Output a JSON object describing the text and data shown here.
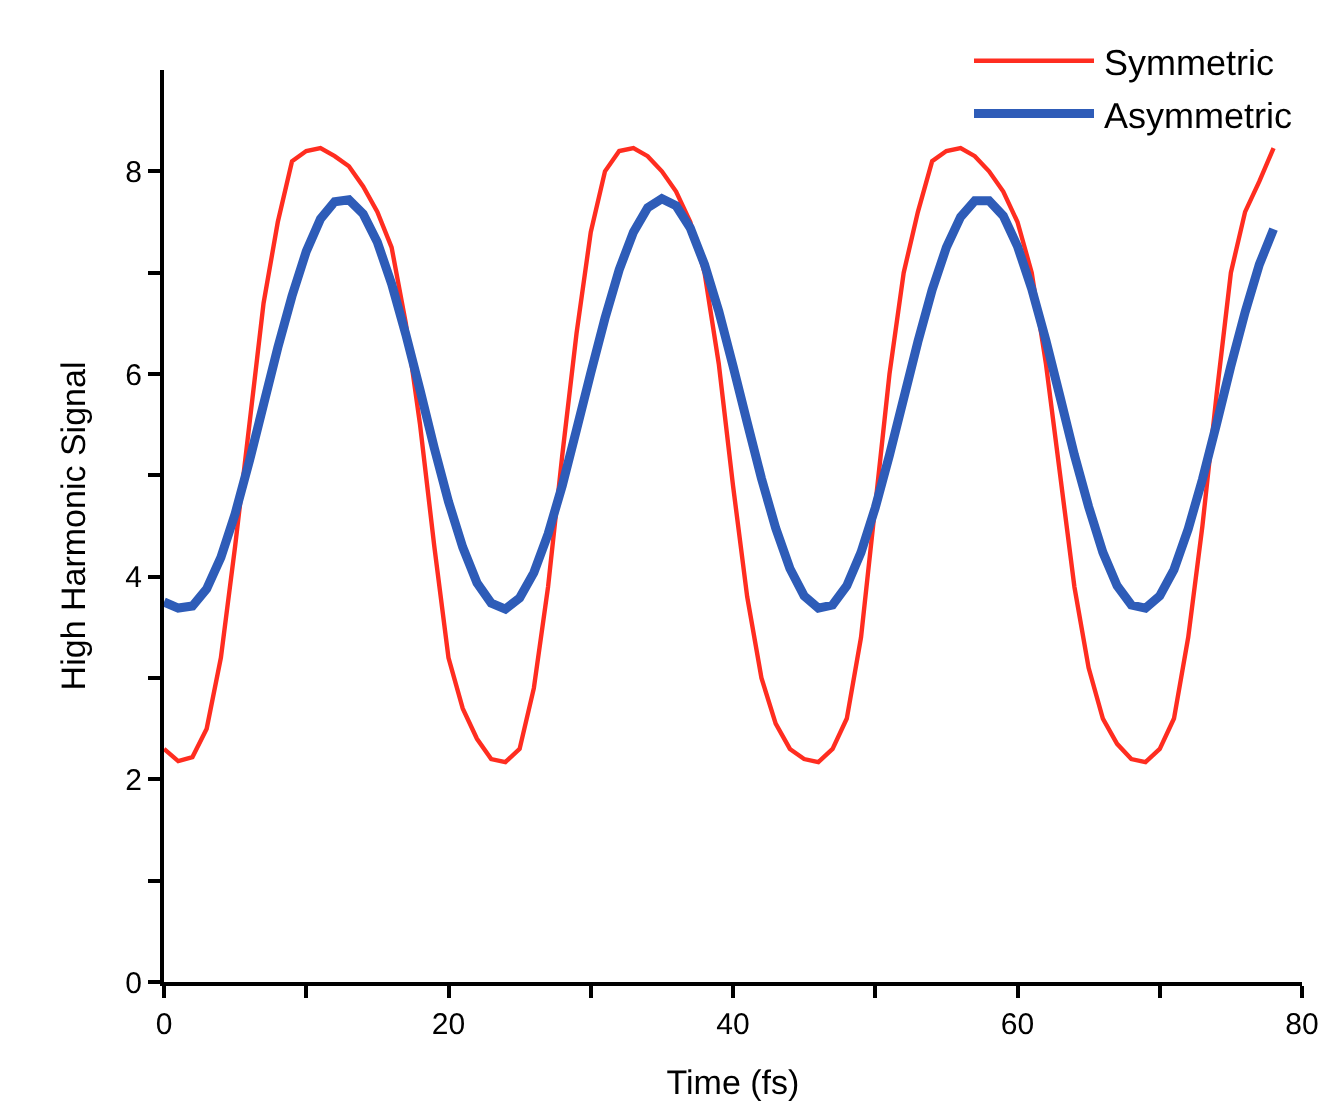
{
  "chart_data": {
    "type": "line",
    "xlabel": "Time (fs)",
    "ylabel": "High Harmonic Signal",
    "x": [
      0,
      1,
      2,
      3,
      4,
      5,
      6,
      7,
      8,
      9,
      10,
      11,
      12,
      13,
      14,
      15,
      16,
      17,
      18,
      19,
      20,
      21,
      22,
      23,
      24,
      25,
      26,
      27,
      28,
      29,
      30,
      31,
      32,
      33,
      34,
      35,
      36,
      37,
      38,
      39,
      40,
      41,
      42,
      43,
      44,
      45,
      46,
      47,
      48,
      49,
      50,
      51,
      52,
      53,
      54,
      55,
      56,
      57,
      58,
      59,
      60,
      61,
      62,
      63,
      64,
      65,
      66,
      67,
      68,
      69,
      70,
      71,
      72,
      73,
      74,
      75,
      76,
      77,
      78
    ],
    "series": [
      {
        "name": "Symmetric",
        "color": "#ff2d20",
        "values": [
          2.3,
          2.18,
          2.22,
          2.5,
          3.2,
          4.3,
          5.5,
          6.7,
          7.5,
          8.1,
          8.2,
          8.23,
          8.15,
          8.05,
          7.85,
          7.6,
          7.25,
          6.5,
          5.5,
          4.3,
          3.2,
          2.7,
          2.4,
          2.2,
          2.17,
          2.3,
          2.9,
          3.9,
          5.2,
          6.4,
          7.4,
          8.0,
          8.2,
          8.23,
          8.15,
          8.0,
          7.8,
          7.5,
          7.0,
          6.1,
          4.9,
          3.8,
          3.0,
          2.55,
          2.3,
          2.2,
          2.17,
          2.3,
          2.6,
          3.4,
          4.7,
          6.0,
          7.0,
          7.6,
          8.1,
          8.2,
          8.23,
          8.15,
          8.0,
          7.8,
          7.5,
          7.0,
          6.1,
          5.0,
          3.9,
          3.1,
          2.6,
          2.35,
          2.2,
          2.17,
          2.3,
          2.6,
          3.4,
          4.5,
          5.8,
          7.0,
          7.6,
          7.9,
          8.23
        ]
      },
      {
        "name": "Asymmetric",
        "color": "#2e5cb8",
        "values": [
          3.75,
          3.69,
          3.71,
          3.88,
          4.19,
          4.62,
          5.14,
          5.7,
          6.26,
          6.77,
          7.21,
          7.53,
          7.7,
          7.72,
          7.58,
          7.3,
          6.89,
          6.39,
          5.84,
          5.27,
          4.74,
          4.29,
          3.94,
          3.74,
          3.68,
          3.79,
          4.04,
          4.42,
          4.9,
          5.45,
          6.01,
          6.55,
          7.03,
          7.4,
          7.64,
          7.73,
          7.66,
          7.44,
          7.08,
          6.62,
          6.08,
          5.52,
          4.97,
          4.48,
          4.08,
          3.81,
          3.69,
          3.72,
          3.91,
          4.24,
          4.68,
          5.2,
          5.76,
          6.32,
          6.83,
          7.25,
          7.55,
          7.71,
          7.71,
          7.56,
          7.26,
          6.84,
          6.33,
          5.77,
          5.2,
          4.69,
          4.24,
          3.91,
          3.72,
          3.69,
          3.81,
          4.07,
          4.47,
          4.96,
          5.51,
          6.08,
          6.61,
          7.08,
          7.43
        ]
      }
    ],
    "xlim": [
      0,
      80
    ],
    "xticks": [
      0,
      {
        "value": 10,
        "label": null
      },
      20,
      {
        "value": 30,
        "label": null
      },
      40,
      {
        "value": 50,
        "label": null
      },
      60,
      {
        "value": 70,
        "label": null
      },
      80
    ],
    "ylim": [
      0,
      9
    ],
    "yticks": [
      0,
      {
        "value": 1,
        "label": null
      },
      2,
      {
        "value": 3,
        "label": null
      },
      4,
      {
        "value": 5,
        "label": null
      },
      6,
      {
        "value": 7,
        "label": null
      },
      8
    ],
    "legend": "top right",
    "marker": "none",
    "line_style": "solid"
  }
}
